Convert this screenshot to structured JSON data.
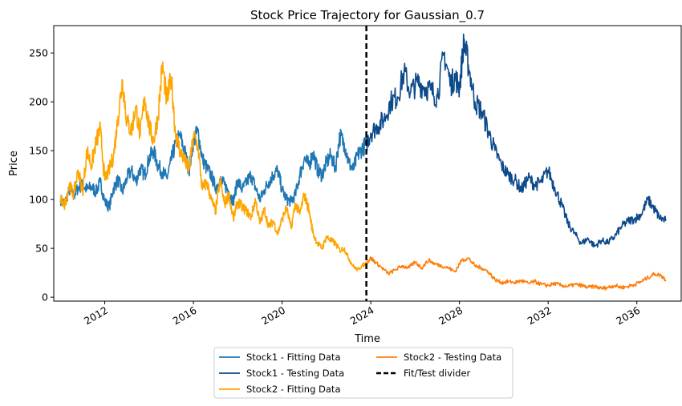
{
  "chart_data": {
    "type": "line",
    "title": "Stock Price Trajectory for Gaussian_0.7",
    "xlabel": "Time",
    "ylabel": "Price",
    "xlim": [
      2009.7,
      2038.0
    ],
    "ylim": [
      -4,
      278
    ],
    "x_ticks": [
      2012,
      2016,
      2020,
      2024,
      2028,
      2032,
      2036
    ],
    "x_tick_labels": [
      "2012",
      "2016",
      "2020",
      "2024",
      "2028",
      "2032",
      "2036"
    ],
    "y_ticks": [
      0,
      50,
      100,
      150,
      200,
      250
    ],
    "y_tick_labels": [
      "0",
      "50",
      "100",
      "150",
      "200",
      "250"
    ],
    "grid": false,
    "legend_position": "below-center",
    "divider": {
      "x": 2023.8,
      "name": "Fit/Test divider",
      "color": "#000000",
      "style": "dashed"
    },
    "series": [
      {
        "name": "Stock1 - Fitting Data",
        "color": "#1f77b4",
        "x": [
          2010.0,
          2010.2,
          2010.4,
          2010.6,
          2010.8,
          2011.0,
          2011.2,
          2011.4,
          2011.6,
          2011.8,
          2012.0,
          2012.2,
          2012.4,
          2012.6,
          2012.8,
          2013.0,
          2013.2,
          2013.4,
          2013.6,
          2013.8,
          2014.0,
          2014.2,
          2014.4,
          2014.6,
          2014.8,
          2015.0,
          2015.2,
          2015.4,
          2015.6,
          2015.8,
          2016.0,
          2016.2,
          2016.4,
          2016.6,
          2016.8,
          2017.0,
          2017.2,
          2017.4,
          2017.6,
          2017.8,
          2018.0,
          2018.2,
          2018.4,
          2018.6,
          2018.8,
          2019.0,
          2019.2,
          2019.4,
          2019.6,
          2019.8,
          2020.0,
          2020.2,
          2020.4,
          2020.6,
          2020.8,
          2021.0,
          2021.2,
          2021.4,
          2021.6,
          2021.8,
          2022.0,
          2022.2,
          2022.4,
          2022.6,
          2022.8,
          2023.0,
          2023.2,
          2023.4,
          2023.6,
          2023.8
        ],
        "values": [
          100,
          96,
          110,
          104,
          112,
          115,
          110,
          113,
          108,
          118,
          98,
          92,
          112,
          120,
          108,
          122,
          130,
          118,
          132,
          125,
          142,
          150,
          135,
          128,
          122,
          140,
          158,
          165,
          150,
          130,
          160,
          170,
          142,
          132,
          125,
          112,
          120,
          115,
          108,
          98,
          120,
          110,
          118,
          125,
          112,
          100,
          110,
          118,
          125,
          130,
          110,
          100,
          98,
          105,
          125,
          142,
          135,
          148,
          130,
          125,
          138,
          145,
          132,
          165,
          158,
          138,
          130,
          145,
          152,
          157
        ]
      },
      {
        "name": "Stock1 - Testing Data",
        "color": "#0d4a8a",
        "x": [
          2023.8,
          2024.0,
          2024.3,
          2024.6,
          2024.9,
          2025.2,
          2025.5,
          2025.8,
          2026.1,
          2026.4,
          2026.7,
          2027.0,
          2027.3,
          2027.6,
          2027.8,
          2028.0,
          2028.2,
          2028.4,
          2028.7,
          2029.0,
          2029.3,
          2029.6,
          2029.9,
          2030.2,
          2030.5,
          2030.8,
          2031.1,
          2031.4,
          2031.7,
          2032.0,
          2032.3,
          2032.6,
          2032.9,
          2033.2,
          2033.5,
          2033.8,
          2034.1,
          2034.4,
          2034.7,
          2035.0,
          2035.3,
          2035.6,
          2035.9,
          2036.2,
          2036.5,
          2036.8,
          2037.0,
          2037.3
        ],
        "values": [
          157,
          168,
          175,
          182,
          200,
          205,
          230,
          210,
          220,
          215,
          212,
          205,
          250,
          218,
          225,
          215,
          262,
          238,
          200,
          190,
          170,
          150,
          135,
          125,
          120,
          110,
          122,
          115,
          118,
          130,
          112,
          95,
          75,
          65,
          55,
          60,
          52,
          58,
          56,
          62,
          72,
          78,
          80,
          85,
          100,
          90,
          82,
          78
        ]
      },
      {
        "name": "Stock2 - Fitting Data",
        "color": "#ffa500",
        "x": [
          2010.0,
          2010.2,
          2010.4,
          2010.6,
          2010.8,
          2011.0,
          2011.2,
          2011.4,
          2011.6,
          2011.8,
          2012.0,
          2012.2,
          2012.4,
          2012.6,
          2012.8,
          2013.0,
          2013.2,
          2013.4,
          2013.6,
          2013.8,
          2014.0,
          2014.2,
          2014.4,
          2014.6,
          2014.8,
          2015.0,
          2015.2,
          2015.4,
          2015.6,
          2015.8,
          2016.0,
          2016.2,
          2016.4,
          2016.6,
          2016.8,
          2017.0,
          2017.2,
          2017.4,
          2017.6,
          2017.8,
          2018.0,
          2018.2,
          2018.4,
          2018.6,
          2018.8,
          2019.0,
          2019.2,
          2019.4,
          2019.6,
          2019.8,
          2020.0,
          2020.2,
          2020.4,
          2020.6,
          2020.8,
          2021.0,
          2021.2,
          2021.4,
          2021.6,
          2021.8,
          2022.0,
          2022.2,
          2022.4,
          2022.6,
          2022.8,
          2023.0,
          2023.2,
          2023.4,
          2023.6,
          2023.8
        ],
        "values": [
          100,
          95,
          115,
          105,
          130,
          108,
          150,
          135,
          158,
          172,
          120,
          130,
          145,
          185,
          222,
          180,
          170,
          195,
          165,
          205,
          175,
          160,
          185,
          238,
          200,
          225,
          165,
          150,
          140,
          130,
          165,
          155,
          110,
          118,
          100,
          88,
          120,
          95,
          105,
          80,
          98,
          92,
          88,
          82,
          100,
          75,
          90,
          72,
          78,
          65,
          80,
          92,
          70,
          96,
          85,
          105,
          90,
          65,
          55,
          50,
          62,
          58,
          55,
          48,
          50,
          40,
          32,
          28,
          32,
          35
        ]
      },
      {
        "name": "Stock2 - Testing Data",
        "color": "#ff7f0e",
        "x": [
          2023.8,
          2024.0,
          2024.2,
          2024.5,
          2024.8,
          2025.1,
          2025.4,
          2025.7,
          2026.0,
          2026.3,
          2026.6,
          2026.9,
          2027.2,
          2027.5,
          2027.8,
          2028.1,
          2028.4,
          2028.7,
          2029.0,
          2029.3,
          2029.6,
          2029.9,
          2030.2,
          2030.5,
          2030.8,
          2031.1,
          2031.4,
          2031.7,
          2032.0,
          2032.3,
          2032.6,
          2032.9,
          2033.2,
          2033.5,
          2033.8,
          2034.1,
          2034.4,
          2034.7,
          2035.0,
          2035.3,
          2035.6,
          2035.9,
          2036.2,
          2036.5,
          2036.8,
          2037.1,
          2037.3
        ],
        "values": [
          35,
          40,
          36,
          30,
          24,
          28,
          32,
          30,
          36,
          30,
          38,
          34,
          32,
          30,
          26,
          38,
          40,
          32,
          30,
          26,
          18,
          15,
          16,
          15,
          17,
          14,
          16,
          13,
          12,
          14,
          12,
          11,
          13,
          12,
          10,
          11,
          9,
          10,
          12,
          10,
          11,
          13,
          16,
          20,
          24,
          22,
          18
        ]
      }
    ]
  }
}
